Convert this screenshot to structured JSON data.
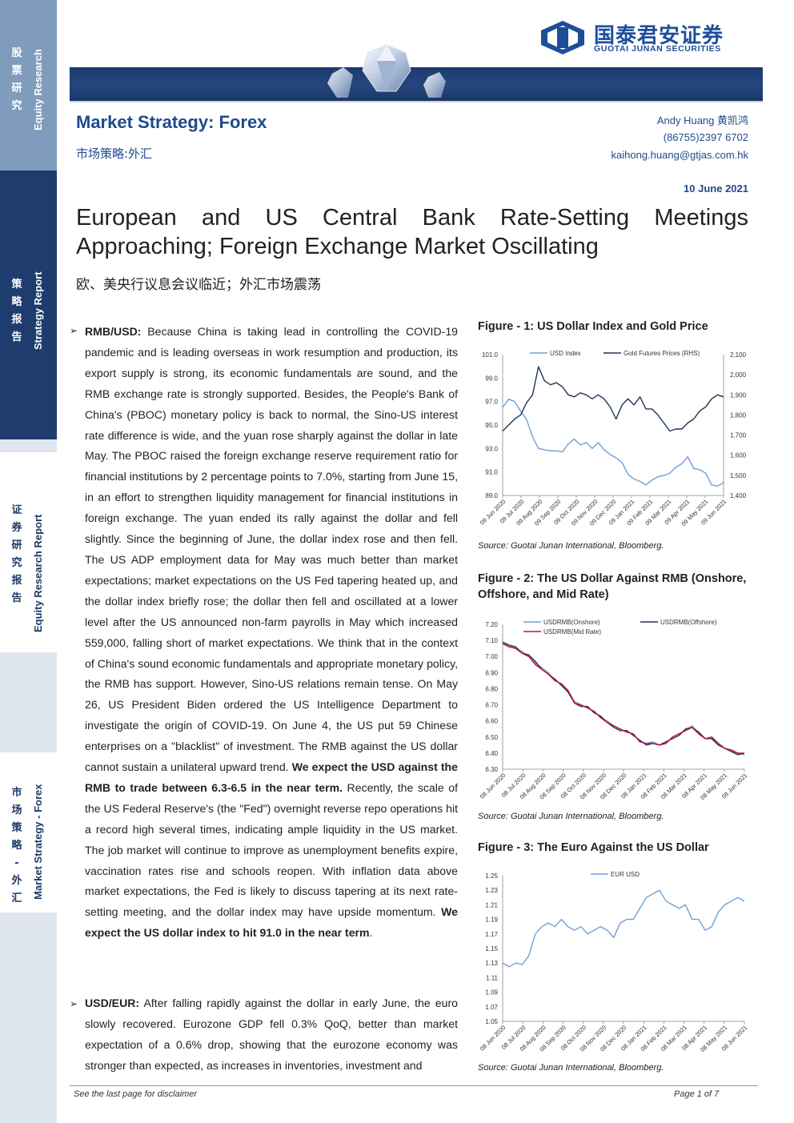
{
  "sidebar": [
    {
      "cn": [
        "股",
        "票",
        "研",
        "究"
      ],
      "en": "Equity Research",
      "style": "dark",
      "color": "#7f9cbc"
    },
    {
      "cn": [
        "策",
        "略",
        "报",
        "告"
      ],
      "en": "Strategy Report",
      "style": "dark",
      "color": "#1e3c6e"
    },
    {
      "cn": [
        "证",
        "券",
        "研",
        "究",
        "报",
        "告"
      ],
      "en": "Equity Research Report",
      "style": "light",
      "color": "#ffffff"
    },
    {
      "cn": [
        "市",
        "场",
        "策",
        "略",
        "-",
        "外",
        "汇"
      ],
      "en": "Market Strategy - Forex",
      "style": "light",
      "color": "#ffffff"
    }
  ],
  "header": {
    "logo_cn": "国泰君安证券",
    "logo_en": "GUOTAI JUNAN SECURITIES",
    "section_title": "Market Strategy: Forex",
    "section_title_cn": "市场策略:外汇",
    "analyst": "Andy Huang  黄凯鸿",
    "phone": "(86755)2397 6702",
    "email": "kaihong.huang@gtjas.com.hk",
    "date": "10 June 2021",
    "headline": "European and US Central Bank Rate-Setting Meetings Approaching; Foreign Exchange Market Oscillating",
    "headline_cn": "欧、美央行议息会议临近；外汇市场震荡"
  },
  "body": {
    "bullet_symbol": "➢",
    "p1": {
      "lead": "RMB/USD:",
      "text1": " Because China is taking lead in controlling the COVID-19 pandemic and is leading overseas in work resumption and production, its export supply is strong, its economic fundamentals are sound, and the RMB exchange rate is strongly supported. Besides, the People's Bank of China's (PBOC) monetary policy is back to normal, the Sino-US interest rate difference is wide, and the yuan rose sharply against the dollar in late May. The PBOC raised the foreign exchange reserve requirement ratio for financial institutions by 2 percentage points to 7.0%, starting from June 15, in an effort to strengthen liquidity management for financial institutions in foreign exchange. The yuan ended its rally against the dollar and fell slightly. Since the beginning of June, the dollar index rose and then fell. The US ADP employment data for May was much better than market expectations; market expectations on the US Fed tapering heated up, and the dollar index briefly rose; the dollar then fell and oscillated at a lower level after the US announced non-farm payrolls in May which increased 559,000, falling short of market expectations. We think that in the context of China's sound economic fundamentals and appropriate monetary policy, the RMB has support. However, Sino-US relations remain tense. On May 26, US President Biden ordered the US Intelligence Department to investigate the origin of COVID-19. On June 4, the US put 59 Chinese enterprises on a \"blacklist\" of investment. The RMB against the US dollar cannot sustain a unilateral upward trend. ",
      "bold1": "We expect the USD against the RMB to trade between 6.3-6.5 in the near term.",
      "text2": " Recently, the scale of the US Federal Reserve's (the \"Fed\") overnight reverse repo operations hit a record high several times, indicating ample liquidity in the US market. The job market will continue to improve as unemployment benefits expire, vaccination rates rise and schools reopen. With inflation data above market expectations, the Fed is likely to discuss tapering at its next rate-setting meeting, and the dollar index may have upside momentum. ",
      "bold2": "We expect the US dollar index to hit 91.0 in the near term",
      "text3": "."
    },
    "p2": {
      "lead": "USD/EUR:",
      "text1": " After falling rapidly against the dollar in early June, the euro slowly recovered. Eurozone GDP fell 0.3% QoQ, better than market expectation of a 0.6% drop, showing that the eurozone economy was stronger than expected, as increases in inventories, investment and"
    }
  },
  "figures": [
    {
      "title": "Figure - 1: US Dollar Index and Gold Price",
      "source": "Source: Guotai Junan International, Bloomberg."
    },
    {
      "title": "Figure - 2: The US Dollar Against RMB (Onshore, Offshore, and Mid Rate)",
      "source": "Source: Guotai Junan International, Bloomberg."
    },
    {
      "title": "Figure - 3: The Euro Against the US Dollar",
      "source": "Source: Guotai Junan International, Bloomberg."
    }
  ],
  "chart_data": [
    {
      "type": "line",
      "ylim_left": [
        89.0,
        101.0
      ],
      "yticks_left": [
        "101.0",
        "99.0",
        "97.0",
        "95.0",
        "93.0",
        "91.0",
        "89.0"
      ],
      "ylim_right": [
        1400,
        2100
      ],
      "yticks_right": [
        "2,100",
        "2,000",
        "1,900",
        "1,800",
        "1,700",
        "1,600",
        "1,500",
        "1,400"
      ],
      "x_tick_labels": [
        "09 Jun 2020",
        "09 Jul 2020",
        "09 Aug 2020",
        "09 Sep 2020",
        "09 Oct 2020",
        "09 Nov 2020",
        "09 Dec 2020",
        "09 Jan 2021",
        "09 Feb 2021",
        "09 Mar 2021",
        "09 Apr 2021",
        "09 May 2021",
        "09 Jun 2021"
      ],
      "legend": "top",
      "series": [
        {
          "name": "USD Index",
          "axis": "left",
          "color": "#6f9fd8",
          "values": [
            96.5,
            97.2,
            97.0,
            96.2,
            95.5,
            94.0,
            93.0,
            92.9,
            92.8,
            92.8,
            92.7,
            93.4,
            93.8,
            93.3,
            93.5,
            93.0,
            93.5,
            92.9,
            92.5,
            92.2,
            91.8,
            90.8,
            90.4,
            90.2,
            89.9,
            90.3,
            90.6,
            90.7,
            90.9,
            91.4,
            91.7,
            92.3,
            91.3,
            91.2,
            90.9,
            89.9,
            89.8,
            90.1
          ]
        },
        {
          "name": "Gold Futures Prices (RHS)",
          "axis": "right",
          "color": "#1f3554",
          "values": [
            1720,
            1750,
            1780,
            1800,
            1860,
            1900,
            2040,
            1970,
            1950,
            1960,
            1940,
            1900,
            1890,
            1910,
            1900,
            1880,
            1900,
            1880,
            1840,
            1780,
            1850,
            1880,
            1850,
            1890,
            1830,
            1830,
            1800,
            1760,
            1720,
            1730,
            1730,
            1760,
            1780,
            1820,
            1840,
            1880,
            1900,
            1890
          ]
        }
      ]
    },
    {
      "type": "line",
      "ylim": [
        6.3,
        7.2
      ],
      "yticks": [
        "7.20",
        "7.10",
        "7.00",
        "6.90",
        "6.80",
        "6.70",
        "6.60",
        "6.50",
        "6.40",
        "6.30"
      ],
      "x_tick_labels": [
        "08 Jun 2020",
        "08 Jul 2020",
        "08 Aug 2020",
        "08 Sep 2020",
        "08 Oct 2020",
        "08 Nov 2020",
        "08 Dec 2020",
        "08 Jan 2021",
        "08 Feb 2021",
        "08 Mar 2021",
        "08 Apr 2021",
        "08 May 2021",
        "08 Jun 2021"
      ],
      "legend": "top",
      "series": [
        {
          "name": "USDRMB(Onshore)",
          "color": "#6f9fd8",
          "values": [
            7.08,
            7.07,
            7.05,
            7.03,
            7.0,
            6.96,
            6.93,
            6.9,
            6.85,
            6.83,
            6.79,
            6.72,
            6.7,
            6.68,
            6.66,
            6.62,
            6.6,
            6.57,
            6.55,
            6.53,
            6.52,
            6.47,
            6.46,
            6.47,
            6.45,
            6.46,
            6.5,
            6.52,
            6.54,
            6.57,
            6.52,
            6.49,
            6.5,
            6.46,
            6.43,
            6.41,
            6.4,
            6.39
          ]
        },
        {
          "name": "USDRMB(Offshore)",
          "color": "#1f3554",
          "values": [
            7.09,
            7.07,
            7.06,
            7.02,
            7.01,
            6.97,
            6.92,
            6.89,
            6.86,
            6.82,
            6.78,
            6.71,
            6.69,
            6.69,
            6.65,
            6.63,
            6.59,
            6.56,
            6.54,
            6.54,
            6.51,
            6.48,
            6.45,
            6.46,
            6.45,
            6.47,
            6.49,
            6.51,
            6.55,
            6.56,
            6.53,
            6.49,
            6.49,
            6.45,
            6.43,
            6.41,
            6.39,
            6.4
          ]
        },
        {
          "name": "USDRMB(Mid Rate)",
          "color": "#c8102e",
          "values": [
            7.08,
            7.06,
            7.05,
            7.02,
            7.0,
            6.95,
            6.92,
            6.89,
            6.85,
            6.83,
            6.79,
            6.71,
            6.7,
            6.68,
            6.66,
            6.62,
            6.59,
            6.57,
            6.55,
            6.53,
            6.52,
            6.47,
            6.46,
            6.46,
            6.45,
            6.46,
            6.5,
            6.52,
            6.54,
            6.56,
            6.52,
            6.49,
            6.5,
            6.46,
            6.43,
            6.42,
            6.4,
            6.4
          ]
        }
      ]
    },
    {
      "type": "line",
      "ylim": [
        1.05,
        1.25
      ],
      "yticks": [
        "1.25",
        "1.23",
        "1.21",
        "1.19",
        "1.17",
        "1.15",
        "1.13",
        "1.11",
        "1.09",
        "1.07",
        "1.05"
      ],
      "x_tick_labels": [
        "08 Jun 2020",
        "08 Jul 2020",
        "08 Aug 2020",
        "08 Sep 2020",
        "08 Oct 2020",
        "08 Nov 2020",
        "08 Dec 2020",
        "08 Jan 2021",
        "08 Feb 2021",
        "08 Mar 2021",
        "08 Apr 2021",
        "08 May 2021",
        "08 Jun 2021"
      ],
      "legend": "top",
      "series": [
        {
          "name": "EUR USD",
          "color": "#6f9fd8",
          "values": [
            1.13,
            1.125,
            1.13,
            1.128,
            1.14,
            1.17,
            1.18,
            1.185,
            1.18,
            1.19,
            1.18,
            1.175,
            1.18,
            1.17,
            1.175,
            1.18,
            1.175,
            1.165,
            1.185,
            1.19,
            1.19,
            1.205,
            1.22,
            1.225,
            1.23,
            1.215,
            1.21,
            1.205,
            1.21,
            1.19,
            1.19,
            1.175,
            1.18,
            1.2,
            1.21,
            1.215,
            1.22,
            1.215
          ]
        }
      ]
    }
  ],
  "footer": {
    "left": "See the last page for disclaimer",
    "right": "Page 1 of 7"
  }
}
